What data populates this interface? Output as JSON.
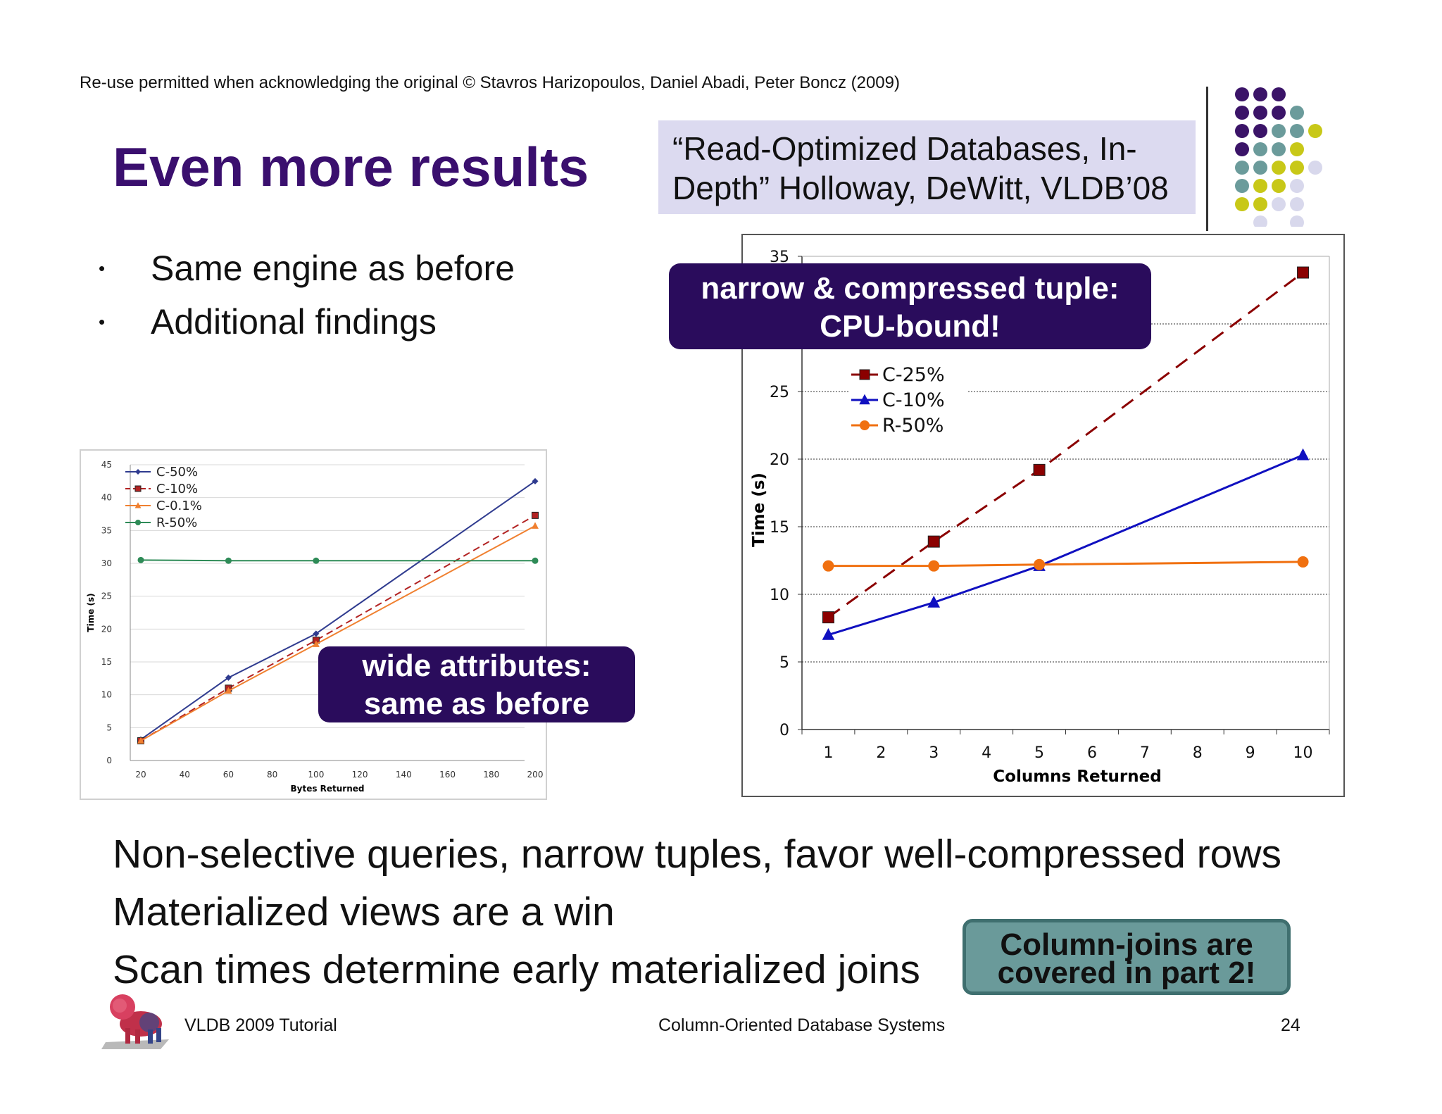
{
  "header": {
    "copyright": "Re-use permitted when acknowledging the original © Stavros Harizopoulos, Daniel Abadi, Peter Boncz (2009)",
    "title": "Even more results",
    "citation_line1": "“Read-Optimized Databases, In-",
    "citation_line2": "Depth” Holloway, DeWitt, VLDB’08"
  },
  "bullets": [
    "Same engine as before",
    "Additional findings"
  ],
  "callouts": {
    "narrow_line1": "narrow & compressed tuple:",
    "narrow_line2": "CPU-bound!",
    "wide_line1": "wide attributes:",
    "wide_line2": "same as before"
  },
  "statements": [
    "Non-selective queries, narrow tuples, favor well-compressed rows",
    "Materialized views are a win",
    "Scan times determine early materialized joins"
  ],
  "note": {
    "line1": "Column-joins are",
    "line2": "covered in part 2!"
  },
  "footer": {
    "left": "VLDB 2009 Tutorial",
    "center": "Column-Oriented Database Systems",
    "page": "24"
  },
  "colors": {
    "title": "#3a0f6e",
    "callout_bg": "#2a0c5c",
    "note_bg": "#6a9a9a",
    "citation_bg": "#dcdaf0"
  },
  "chart_data": [
    {
      "type": "line",
      "xlabel": "Bytes Returned",
      "ylabel": "Time (s)",
      "xlim": [
        20,
        200
      ],
      "ylim": [
        0,
        45
      ],
      "xticks": [
        20,
        40,
        60,
        80,
        100,
        120,
        140,
        160,
        180,
        200
      ],
      "yticks": [
        0,
        5,
        10,
        15,
        20,
        25,
        30,
        35,
        40,
        45
      ],
      "x": [
        20,
        60,
        100,
        200
      ],
      "legend_position": "top-left",
      "grid": "horizontal",
      "series": [
        {
          "name": "C-50%",
          "values": [
            3.2,
            12.6,
            19.3,
            42.5
          ],
          "color": "#2f3b8f",
          "marker": "diamond",
          "dash": "solid"
        },
        {
          "name": "C-10%",
          "values": [
            3.0,
            11.0,
            18.3,
            37.3
          ],
          "color": "#b22222",
          "marker": "square",
          "dash": "dashed"
        },
        {
          "name": "C-0.1%",
          "values": [
            3.0,
            10.6,
            17.7,
            35.7
          ],
          "color": "#f08030",
          "marker": "triangle",
          "dash": "solid"
        },
        {
          "name": "R-50%",
          "values": [
            30.5,
            30.4,
            30.4,
            30.4
          ],
          "color": "#2e8b57",
          "marker": "circle",
          "dash": "solid"
        }
      ]
    },
    {
      "type": "line",
      "xlabel": "Columns Returned",
      "ylabel": "Time (s)",
      "xlim": [
        0.5,
        10.5
      ],
      "ylim": [
        0,
        35
      ],
      "xticks": [
        1,
        2,
        3,
        4,
        5,
        6,
        7,
        8,
        9,
        10
      ],
      "yticks": [
        0,
        5,
        10,
        15,
        20,
        25,
        30,
        35
      ],
      "legend_position": "top-left",
      "grid": "horizontal",
      "series": [
        {
          "name": "C-25%",
          "x": [
            1,
            3,
            5,
            10
          ],
          "values": [
            8.3,
            13.9,
            19.2,
            33.8
          ],
          "color": "#8b0000",
          "marker": "square",
          "dash": "dashed"
        },
        {
          "name": "C-10%",
          "x": [
            1,
            3,
            5,
            10
          ],
          "values": [
            7.0,
            9.4,
            12.1,
            20.3
          ],
          "color": "#1010c0",
          "marker": "triangle",
          "dash": "solid"
        },
        {
          "name": "R-50%",
          "x": [
            1,
            3,
            5,
            10
          ],
          "values": [
            12.1,
            12.1,
            12.2,
            12.4
          ],
          "color": "#f07010",
          "marker": "circle",
          "dash": "solid"
        }
      ]
    }
  ]
}
